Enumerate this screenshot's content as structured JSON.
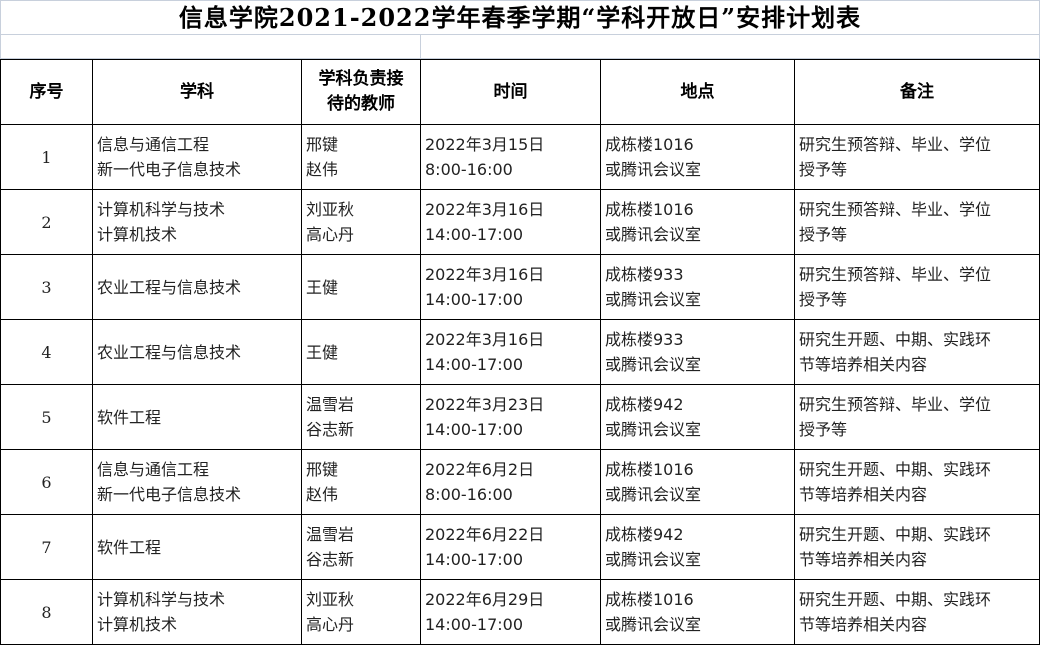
{
  "title": "信息学院2021-2022学年春季学期“学科开放日”安排计划表",
  "headers": {
    "no": "序号",
    "subject": "学科",
    "teacher_1": "学科负责接",
    "teacher_2": "待的教师",
    "time": "时间",
    "place": "地点",
    "note": "备注"
  },
  "rows": [
    {
      "no": "1",
      "subject": [
        "信息与通信工程",
        "新一代电子信息技术"
      ],
      "teacher": [
        "邢键",
        "赵伟"
      ],
      "time": [
        "2022年3月15日",
        "8:00-16:00"
      ],
      "place": [
        "成栋楼1016",
        "或腾讯会议室"
      ],
      "note": [
        "研究生预答辩、毕业、学位",
        "授予等"
      ]
    },
    {
      "no": "2",
      "subject": [
        "计算机科学与技术",
        "计算机技术"
      ],
      "teacher": [
        "刘亚秋",
        "高心丹"
      ],
      "time": [
        "2022年3月16日",
        "14:00-17:00"
      ],
      "place": [
        "成栋楼1016",
        "或腾讯会议室"
      ],
      "note": [
        "研究生预答辩、毕业、学位",
        "授予等"
      ]
    },
    {
      "no": "3",
      "subject": [
        "农业工程与信息技术",
        ""
      ],
      "teacher": [
        "王健",
        ""
      ],
      "time": [
        "2022年3月16日",
        "14:00-17:00"
      ],
      "place": [
        "成栋楼933",
        "或腾讯会议室"
      ],
      "note": [
        "研究生预答辩、毕业、学位",
        "授予等"
      ]
    },
    {
      "no": "4",
      "subject": [
        "农业工程与信息技术",
        ""
      ],
      "teacher": [
        "王健",
        ""
      ],
      "time": [
        "2022年3月16日",
        "14:00-17:00"
      ],
      "place": [
        "成栋楼933",
        "或腾讯会议室"
      ],
      "note": [
        "研究生开题、中期、实践环",
        "节等培养相关内容"
      ]
    },
    {
      "no": "5",
      "subject": [
        "软件工程",
        ""
      ],
      "teacher": [
        "温雪岩",
        "谷志新"
      ],
      "time": [
        "2022年3月23日",
        "14:00-17:00"
      ],
      "place": [
        "成栋楼942",
        "或腾讯会议室"
      ],
      "note": [
        "研究生预答辩、毕业、学位",
        "授予等"
      ]
    },
    {
      "no": "6",
      "subject": [
        "信息与通信工程",
        "新一代电子信息技术"
      ],
      "teacher": [
        "邢键",
        "赵伟"
      ],
      "time": [
        "2022年6月2日",
        "8:00-16:00"
      ],
      "place": [
        "成栋楼1016",
        "或腾讯会议室"
      ],
      "note": [
        "研究生开题、中期、实践环",
        "节等培养相关内容"
      ]
    },
    {
      "no": "7",
      "subject": [
        "软件工程",
        ""
      ],
      "teacher": [
        "温雪岩",
        "谷志新"
      ],
      "time": [
        "2022年6月22日",
        "14:00-17:00"
      ],
      "place": [
        "成栋楼942",
        "或腾讯会议室"
      ],
      "note": [
        "研究生开题、中期、实践环",
        "节等培养相关内容"
      ]
    },
    {
      "no": "8",
      "subject": [
        "计算机科学与技术",
        "计算机技术"
      ],
      "teacher": [
        "刘亚秋",
        "高心丹"
      ],
      "time": [
        "2022年6月29日",
        "14:00-17:00"
      ],
      "place": [
        "成栋楼1016",
        "或腾讯会议室"
      ],
      "note": [
        "研究生开题、中期、实践环",
        "节等培养相关内容"
      ]
    }
  ]
}
